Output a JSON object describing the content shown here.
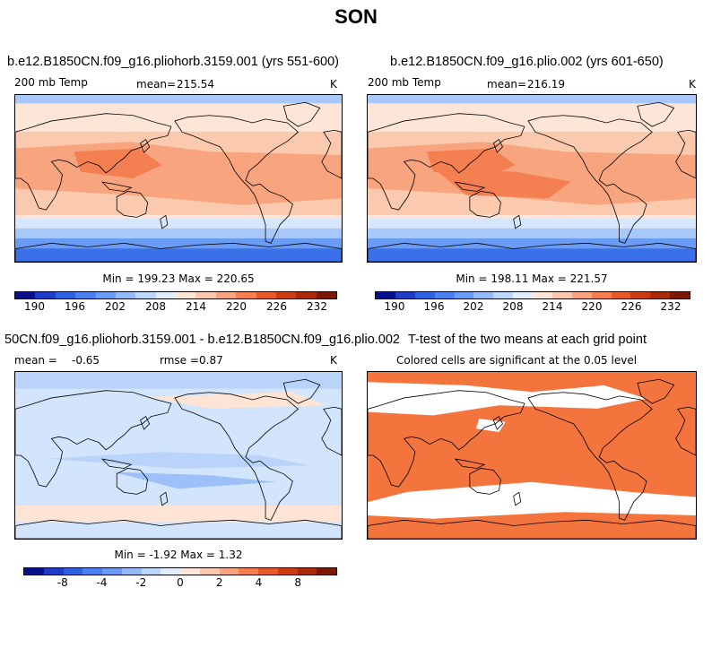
{
  "figure": {
    "season": "SON"
  },
  "chart_data": [
    {
      "type": "heatmap",
      "title": "b.e12.B1850CN.f09_g16.pliohorb.3159.001 (yrs 551-600)",
      "variable": "200 mb Temp",
      "mean_label": "mean=",
      "mean": "215.54",
      "units": "K",
      "min_max_text": "Min = 199.23 Max = 220.65",
      "min": 199.23,
      "max": 220.65,
      "colorbar": {
        "levels": [
          190,
          193,
          196,
          199,
          202,
          205,
          208,
          211,
          214,
          217,
          220,
          223,
          226,
          229,
          232
        ],
        "tick_labels": [
          "190",
          "196",
          "202",
          "208",
          "214",
          "220",
          "226",
          "232"
        ],
        "colors": [
          "#08108c",
          "#1d3cc8",
          "#2f62e0",
          "#4a80f0",
          "#6a9cf6",
          "#95bbfa",
          "#bcd6fc",
          "#e2eefe",
          "#fde6d8",
          "#fbc9ad",
          "#f8a57f",
          "#f47f50",
          "#e85a2a",
          "#cc3b12",
          "#a82a08",
          "#7a1a04"
        ]
      }
    },
    {
      "type": "heatmap",
      "title": "b.e12.B1850CN.f09_g16.plio.002 (yrs 601-650)",
      "variable": "200 mb Temp",
      "mean_label": "mean=",
      "mean": "216.19",
      "units": "K",
      "min_max_text": "Min = 198.11 Max = 221.57",
      "min": 198.11,
      "max": 221.57,
      "colorbar": {
        "levels": [
          190,
          193,
          196,
          199,
          202,
          205,
          208,
          211,
          214,
          217,
          220,
          223,
          226,
          229,
          232
        ],
        "tick_labels": [
          "190",
          "196",
          "202",
          "208",
          "214",
          "220",
          "226",
          "232"
        ],
        "colors": [
          "#08108c",
          "#1d3cc8",
          "#2f62e0",
          "#4a80f0",
          "#6a9cf6",
          "#95bbfa",
          "#bcd6fc",
          "#e2eefe",
          "#fde6d8",
          "#fbc9ad",
          "#f8a57f",
          "#f47f50",
          "#e85a2a",
          "#cc3b12",
          "#a82a08",
          "#7a1a04"
        ]
      }
    },
    {
      "type": "heatmap",
      "title": "50CN.f09_g16.pliohorb.3159.001 - b.e12.B1850CN.f09_g16.plio.002",
      "mean_label": "mean =",
      "mean": "-0.65",
      "rmse_label": "rmse =",
      "rmse": "0.87",
      "units": "K",
      "min_max_text": "Min = -1.92 Max = 1.32",
      "min": -1.92,
      "max": 1.32,
      "colorbar": {
        "levels": [
          -10,
          -8,
          -6,
          -4,
          -3,
          -2,
          -1,
          0,
          1,
          2,
          3,
          4,
          6,
          8,
          10
        ],
        "tick_labels": [
          "-8",
          "-4",
          "-2",
          "0",
          "2",
          "4",
          "8"
        ],
        "colors": [
          "#08108c",
          "#1d3cc8",
          "#2f62e0",
          "#4a80f0",
          "#6a9cf6",
          "#95bbfa",
          "#bcd6fc",
          "#e2eefe",
          "#fde6d8",
          "#fbc9ad",
          "#f8a57f",
          "#f47f50",
          "#e85a2a",
          "#cc3b12",
          "#a82a08",
          "#7a1a04"
        ]
      }
    },
    {
      "type": "heatmap",
      "title": "T-test of the two means at each grid point",
      "subtitle": "Colored cells are significant at the 0.05 level",
      "significant_color": "#f4743d"
    }
  ],
  "field_colors": {
    "deep_blue": "#3a70e8",
    "mid_blue": "#6a9cf6",
    "light_blue": "#a8c8fa",
    "pale_blue": "#d6e6fd",
    "pale_orange": "#fde6d8",
    "light_orange": "#fbc9ad",
    "orange": "#f8a57f",
    "strong_orange": "#f47f50",
    "diff_blue": "#d3e4fd",
    "diff_blue2": "#b9d3fb",
    "diff_blue3": "#9dc0f8",
    "diff_peach": "#fde4d4",
    "sig": "#f4743d",
    "land_line": "#000000"
  }
}
